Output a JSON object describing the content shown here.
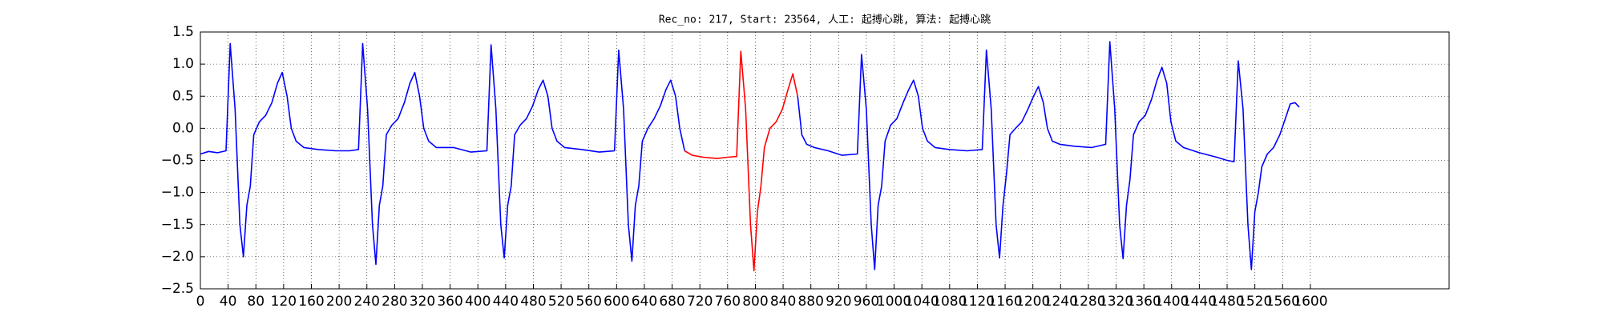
{
  "chart_data": {
    "type": "line",
    "title": "Rec_no: 217, Start: 23564, 人工: 起搏心跳, 算法: 起搏心跳",
    "x": [
      0,
      12,
      25,
      37,
      43,
      50,
      57,
      62,
      67,
      72,
      77,
      85,
      94,
      103,
      111,
      118,
      125,
      131,
      138,
      149,
      170,
      195,
      215,
      228,
      234,
      241,
      248,
      253,
      258,
      263,
      268,
      276,
      285,
      294,
      302,
      309,
      316,
      322,
      329,
      340,
      365,
      390,
      413,
      419,
      426,
      433,
      438,
      443,
      448,
      453,
      461,
      470,
      479,
      487,
      494,
      501,
      507,
      514,
      525,
      550,
      575,
      597,
      603,
      610,
      617,
      622,
      627,
      632,
      637,
      645,
      654,
      663,
      671,
      678,
      685,
      691,
      698,
      709,
      725,
      745,
      760,
      773,
      779,
      786,
      793,
      798,
      803,
      808,
      813,
      821,
      830,
      839,
      847,
      854,
      861,
      867,
      874,
      885,
      905,
      925,
      947,
      953,
      960,
      967,
      972,
      977,
      982,
      987,
      995,
      1004,
      1013,
      1021,
      1028,
      1035,
      1041,
      1048,
      1059,
      1080,
      1105,
      1127,
      1133,
      1140,
      1147,
      1152,
      1157,
      1162,
      1167,
      1175,
      1184,
      1193,
      1201,
      1208,
      1215,
      1221,
      1228,
      1239,
      1260,
      1285,
      1305,
      1311,
      1318,
      1325,
      1330,
      1335,
      1340,
      1345,
      1353,
      1362,
      1371,
      1379,
      1386,
      1393,
      1399,
      1406,
      1417,
      1440,
      1465,
      1480,
      1490,
      1496,
      1503,
      1510,
      1515,
      1520,
      1525,
      1530,
      1538,
      1547,
      1556,
      1564,
      1571,
      1578,
      1584
    ],
    "series": [
      {
        "color": "#0000ff",
        "values": [
          -0.4,
          -0.36,
          -0.38,
          -0.35,
          1.32,
          0.3,
          -1.5,
          -2.0,
          -1.2,
          -0.9,
          -0.1,
          0.1,
          0.2,
          0.4,
          0.7,
          0.87,
          0.5,
          0.0,
          -0.2,
          -0.3,
          -0.33,
          -0.35,
          -0.35,
          -0.33,
          1.32,
          0.3,
          -1.5,
          -2.12,
          -1.2,
          -0.9,
          -0.1,
          0.05,
          0.15,
          0.4,
          0.7,
          0.87,
          0.5,
          0.0,
          -0.2,
          -0.3,
          -0.3,
          -0.37,
          -0.35,
          1.3,
          0.3,
          -1.5,
          -2.02,
          -1.2,
          -0.9,
          -0.1,
          0.05,
          0.15,
          0.35,
          0.6,
          0.75,
          0.5,
          0.0,
          -0.2,
          -0.3,
          -0.33,
          -0.37,
          -0.35,
          1.22,
          0.3,
          -1.5,
          -2.07,
          -1.2,
          -0.9,
          -0.2,
          0.0,
          0.15,
          0.35,
          0.6,
          0.75,
          0.5,
          0.0,
          -0.35,
          null,
          null,
          null,
          null,
          null,
          null,
          null,
          null,
          null,
          null,
          null,
          null,
          null,
          null,
          null,
          null,
          null,
          0.5,
          -0.1,
          -0.25,
          -0.3,
          -0.35,
          -0.42,
          -0.4,
          1.15,
          0.3,
          -1.5,
          -2.2,
          -1.2,
          -0.9,
          -0.2,
          0.05,
          0.15,
          0.4,
          0.6,
          0.75,
          0.5,
          0.0,
          -0.2,
          -0.3,
          -0.33,
          -0.35,
          -0.33,
          1.22,
          0.3,
          -1.5,
          -2.02,
          -1.2,
          -0.7,
          -0.1,
          0.0,
          0.1,
          0.3,
          0.5,
          0.65,
          0.4,
          0.0,
          -0.2,
          -0.25,
          -0.28,
          -0.3,
          -0.25,
          1.35,
          0.3,
          -1.5,
          -2.03,
          -1.2,
          -0.8,
          -0.1,
          0.1,
          0.2,
          0.45,
          0.75,
          0.95,
          0.7,
          0.1,
          -0.2,
          -0.3,
          -0.38,
          -0.45,
          -0.5,
          -0.52,
          1.05,
          0.3,
          -1.5,
          -2.2,
          -1.3,
          -1.0,
          -0.6,
          -0.4,
          -0.3,
          -0.1,
          0.15,
          0.38,
          0.4,
          0.33
        ]
      },
      {
        "color": "#ff0000",
        "values": [
          null,
          null,
          null,
          null,
          null,
          null,
          null,
          null,
          null,
          null,
          null,
          null,
          null,
          null,
          null,
          null,
          null,
          null,
          null,
          null,
          null,
          null,
          null,
          null,
          null,
          null,
          null,
          null,
          null,
          null,
          null,
          null,
          null,
          null,
          null,
          null,
          null,
          null,
          null,
          null,
          null,
          null,
          null,
          null,
          null,
          null,
          null,
          null,
          null,
          null,
          null,
          null,
          null,
          null,
          null,
          null,
          null,
          null,
          null,
          null,
          null,
          null,
          null,
          null,
          null,
          null,
          null,
          null,
          null,
          null,
          null,
          null,
          null,
          null,
          null,
          null,
          -0.35,
          -0.42,
          -0.45,
          -0.47,
          -0.45,
          -0.44,
          1.2,
          0.3,
          -1.5,
          -2.22,
          -1.3,
          -0.9,
          -0.3,
          0.0,
          0.1,
          0.3,
          0.6,
          0.85,
          0.5,
          null,
          null,
          null,
          null,
          null,
          null,
          null,
          null,
          null,
          null,
          null,
          null,
          null,
          null,
          null,
          null,
          null,
          null,
          null,
          null,
          null,
          null,
          null,
          null,
          null,
          null,
          null,
          null,
          null,
          null,
          null,
          null,
          null,
          null,
          null,
          null,
          null,
          null,
          null,
          null,
          null,
          null,
          null,
          null,
          null,
          null,
          null,
          null,
          null,
          null,
          null,
          null,
          null,
          null,
          null,
          null,
          null,
          null,
          null,
          null,
          null,
          null,
          null,
          null,
          null,
          null,
          null,
          null,
          null,
          null,
          null,
          null,
          null,
          null,
          null,
          null,
          null,
          null
        ]
      }
    ],
    "xlim": [
      0,
      1800
    ],
    "xticks": [
      0,
      40,
      80,
      120,
      160,
      200,
      240,
      280,
      320,
      360,
      400,
      440,
      480,
      520,
      560,
      600,
      640,
      680,
      720,
      760,
      800,
      840,
      880,
      920,
      960,
      1000,
      1040,
      1080,
      1120,
      1160,
      1200,
      1240,
      1280,
      1320,
      1360,
      1400,
      1440,
      1480,
      1520,
      1560,
      1600
    ],
    "ylim": [
      -2.5,
      1.5
    ],
    "yticks": [
      {
        "value": -2.5,
        "label": "−2.5"
      },
      {
        "value": -2,
        "label": "−2.0"
      },
      {
        "value": -1.5,
        "label": "−1.5"
      },
      {
        "value": -1,
        "label": "−1.0"
      },
      {
        "value": -0.5,
        "label": "−0.5"
      },
      {
        "value": 0,
        "label": "0.0"
      },
      {
        "value": 0.5,
        "label": "0.5"
      },
      {
        "value": 1,
        "label": "1.0"
      },
      {
        "value": 1.5,
        "label": "1.5"
      }
    ],
    "grid": true
  }
}
